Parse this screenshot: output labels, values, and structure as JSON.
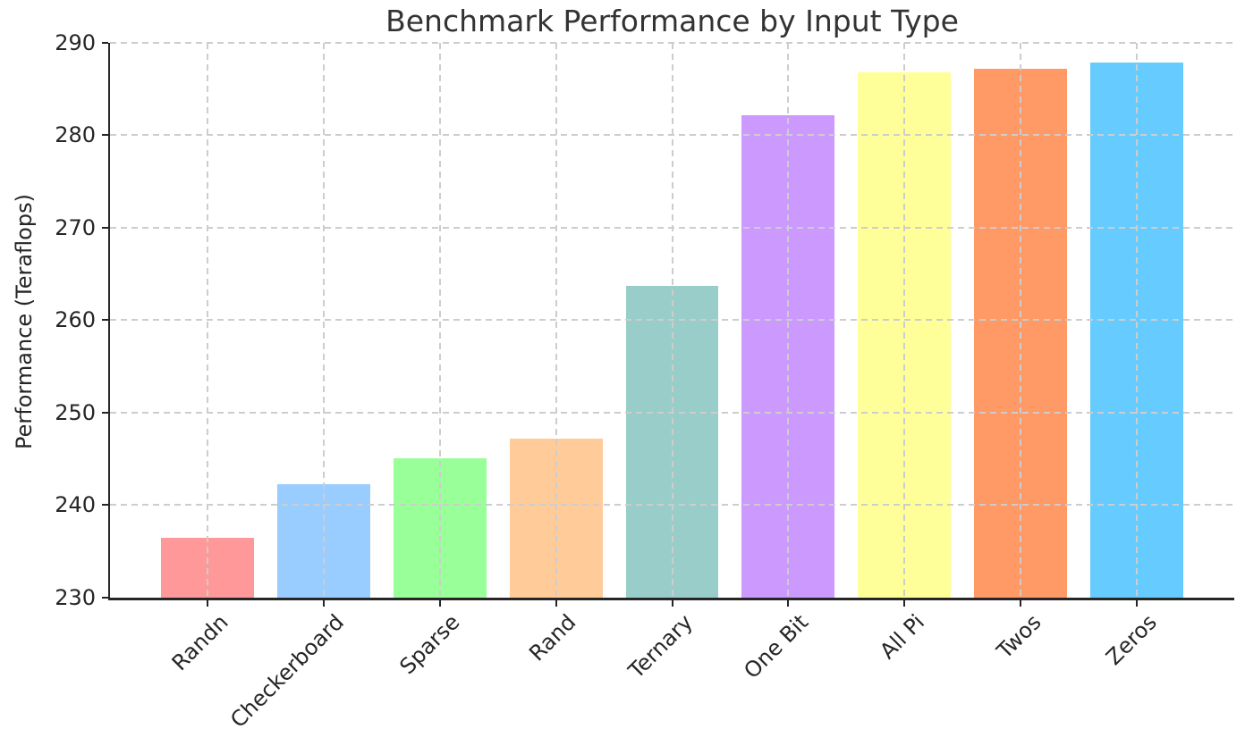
{
  "chart_data": {
    "type": "bar",
    "title": "Benchmark Performance by Input Type",
    "xlabel": "",
    "ylabel": "Performance (Teraflops)",
    "categories": [
      "Randn",
      "Checkerboard",
      "Sparse",
      "Rand",
      "Ternary",
      "One Bit",
      "All Pi",
      "Twos",
      "Zeros"
    ],
    "values": [
      236.5,
      242.3,
      245.1,
      247.2,
      263.7,
      282.1,
      286.8,
      287.2,
      287.8
    ],
    "bar_colors": [
      "#ff9999",
      "#99ccff",
      "#99ff99",
      "#ffcc99",
      "#99cdc9",
      "#cc99ff",
      "#ffff99",
      "#ff9966",
      "#66ccff"
    ],
    "ylim": [
      230,
      290
    ],
    "yticks": [
      230,
      240,
      250,
      260,
      270,
      280,
      290
    ],
    "bar_width_ratio": 0.8,
    "grid": {
      "visible": true,
      "style": "dashed",
      "color": "#cdcdcd",
      "on_top_of_bars": true
    },
    "legend_visible": false,
    "text_color": "#262626",
    "title_color": "#333333",
    "background_color": "#ffffff"
  }
}
